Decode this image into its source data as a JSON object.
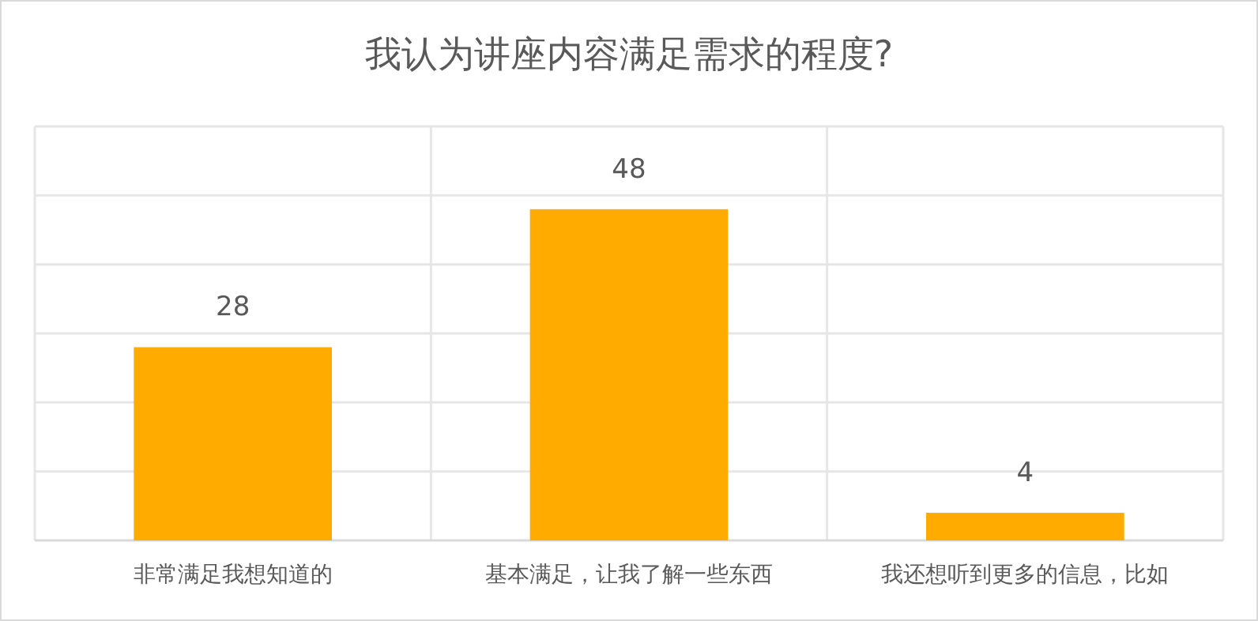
{
  "chart_data": {
    "type": "bar",
    "title": "我认为讲座内容满足需求的程度?",
    "categories": [
      "非常满足我想知道的",
      "基本满足，让我了解一些东西",
      "我还想听到更多的信息，比如"
    ],
    "values": [
      28,
      48,
      4
    ],
    "color": "#ffab00",
    "grid": true,
    "data_labels": true
  }
}
